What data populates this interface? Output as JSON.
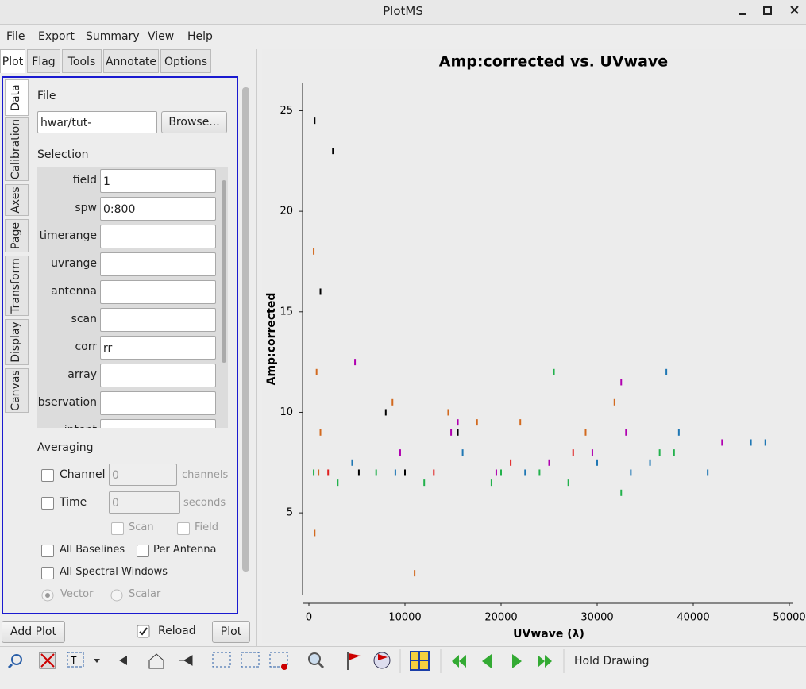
{
  "window": {
    "title": "PlotMS"
  },
  "menu": [
    "File",
    "Export",
    "Summary",
    "View",
    "Help"
  ],
  "tabs": [
    "Plot",
    "Flag",
    "Tools",
    "Annotate",
    "Options"
  ],
  "side_tabs": [
    "Data",
    "Calibration",
    "Axes",
    "Page",
    "Transform",
    "Display",
    "Canvas"
  ],
  "data_tab": {
    "file_label": "File",
    "file_path": "hwar/tut-test/multi.ms",
    "browse": "Browse...",
    "selection_label": "Selection",
    "fields": [
      {
        "label": "field",
        "value": "1"
      },
      {
        "label": "spw",
        "value": "0:800"
      },
      {
        "label": "timerange"
      },
      {
        "label": "uvrange"
      },
      {
        "label": "antenna"
      },
      {
        "label": "scan"
      },
      {
        "label": "corr",
        "value": "rr"
      },
      {
        "label": "array"
      },
      {
        "label": "observation"
      },
      {
        "label": "intent"
      }
    ],
    "averaging_label": "Averaging",
    "channel": {
      "label": "Channel",
      "value": "0",
      "unit": "channels"
    },
    "time": {
      "label": "Time",
      "value": "0",
      "unit": "seconds"
    },
    "scan": "Scan",
    "field": "Field",
    "all_baselines": "All Baselines",
    "per_antenna": "Per Antenna",
    "all_spw": "All Spectral Windows",
    "vector": "Vector",
    "scalar": "Scalar"
  },
  "buttons": {
    "add_plot": "Add Plot",
    "reload": "Reload",
    "plot": "Plot"
  },
  "toolbar": {
    "hold_drawing": "Hold Drawing"
  },
  "chart_data": {
    "type": "scatter",
    "title": "Amp:corrected vs. UVwave",
    "x_label": "UVwave (λ)",
    "y_label": "Amp:corrected",
    "xlim": [
      0,
      50000
    ],
    "ylim": [
      0.9,
      26.4
    ],
    "xticks": [
      0,
      10000,
      20000,
      30000,
      40000,
      50000
    ],
    "yticks": [
      5,
      10,
      15,
      20,
      25
    ],
    "series": [
      {
        "color": "#d2691e",
        "x": [
          500,
          800,
          1200,
          8700,
          11000,
          14500,
          17500,
          22000,
          28800,
          31800,
          600,
          1000
        ],
        "values": [
          18,
          12,
          9,
          10.5,
          2,
          10,
          9.5,
          9.5,
          9,
          10.5,
          4,
          7
        ]
      },
      {
        "color": "#1f77b4",
        "x": [
          4500,
          9000,
          16000,
          22500,
          30000,
          33500,
          37200,
          38500,
          41500,
          46000,
          47500,
          35500
        ],
        "values": [
          7.5,
          7,
          8,
          7,
          7.5,
          7,
          12,
          9,
          7,
          8.5,
          8.5,
          7.5
        ]
      },
      {
        "color": "#22b14c",
        "x": [
          3000,
          7000,
          12000,
          19000,
          24000,
          27000,
          36500,
          38000,
          32500,
          25500,
          20000,
          500
        ],
        "values": [
          6.5,
          7,
          6.5,
          6.5,
          7,
          6.5,
          8,
          8,
          6,
          12,
          7,
          7
        ]
      },
      {
        "color": "#b000b0",
        "x": [
          4800,
          9500,
          14800,
          19500,
          25000,
          32500,
          33000,
          43000,
          29500,
          15500
        ],
        "values": [
          12.5,
          8,
          9,
          7,
          7.5,
          11.5,
          9,
          8.5,
          8,
          9.5
        ]
      },
      {
        "color": "#000000",
        "x": [
          600,
          5200,
          8000,
          15500,
          10000,
          2500,
          1200
        ],
        "values": [
          24.5,
          7,
          10,
          9,
          7,
          23,
          16
        ]
      },
      {
        "color": "#e02020",
        "x": [
          2000,
          13000,
          21000,
          27500
        ],
        "values": [
          7,
          7,
          7.5,
          8
        ]
      }
    ]
  }
}
